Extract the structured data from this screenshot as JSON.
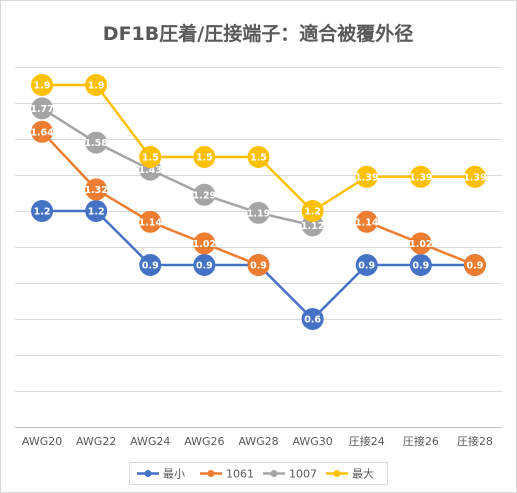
{
  "chart_data": {
    "type": "line",
    "title": "DF1B圧着/圧接端子：適合被覆外径",
    "xlabel": "",
    "ylabel": "",
    "categories": [
      "AWG20",
      "AWG22",
      "AWG24",
      "AWG26",
      "AWG28",
      "AWG30",
      "圧接24",
      "圧接26",
      "圧接28"
    ],
    "ylim": [
      0,
      2
    ],
    "grid": true,
    "legend_position": "bottom",
    "series": [
      {
        "name": "最小",
        "color": "#4472c4",
        "values": [
          1.2,
          1.2,
          0.9,
          0.9,
          0.9,
          0.6,
          0.9,
          0.9,
          0.9
        ],
        "labels": [
          "1.2",
          "1.2",
          "0.9",
          "0.9",
          "0.9",
          "0.6",
          "0.9",
          "0.9",
          "0.9"
        ]
      },
      {
        "name": "1061",
        "color": "#ed7d31",
        "values": [
          1.64,
          1.32,
          1.14,
          1.02,
          0.9,
          null,
          1.14,
          1.02,
          0.9
        ],
        "labels": [
          "1.64",
          "1.32",
          "1.14",
          "1.02",
          "0.9",
          null,
          "1.14",
          "1.02",
          "0.9"
        ]
      },
      {
        "name": "1007",
        "color": "#a5a5a5",
        "values": [
          1.77,
          1.58,
          1.43,
          1.29,
          1.19,
          1.12,
          null,
          null,
          null
        ],
        "labels": [
          "1.77",
          "1.58",
          "1.43",
          "1.29",
          "1.19",
          "1.12",
          null,
          null,
          null
        ]
      },
      {
        "name": "最大",
        "color": "#ffc000",
        "values": [
          1.9,
          1.9,
          1.5,
          1.5,
          1.5,
          1.2,
          1.39,
          1.39,
          1.39
        ],
        "labels": [
          "1.9",
          "1.9",
          "1.5",
          "1.5",
          "1.5",
          "1.2",
          "1.39",
          "1.39",
          "1.39"
        ]
      }
    ]
  }
}
